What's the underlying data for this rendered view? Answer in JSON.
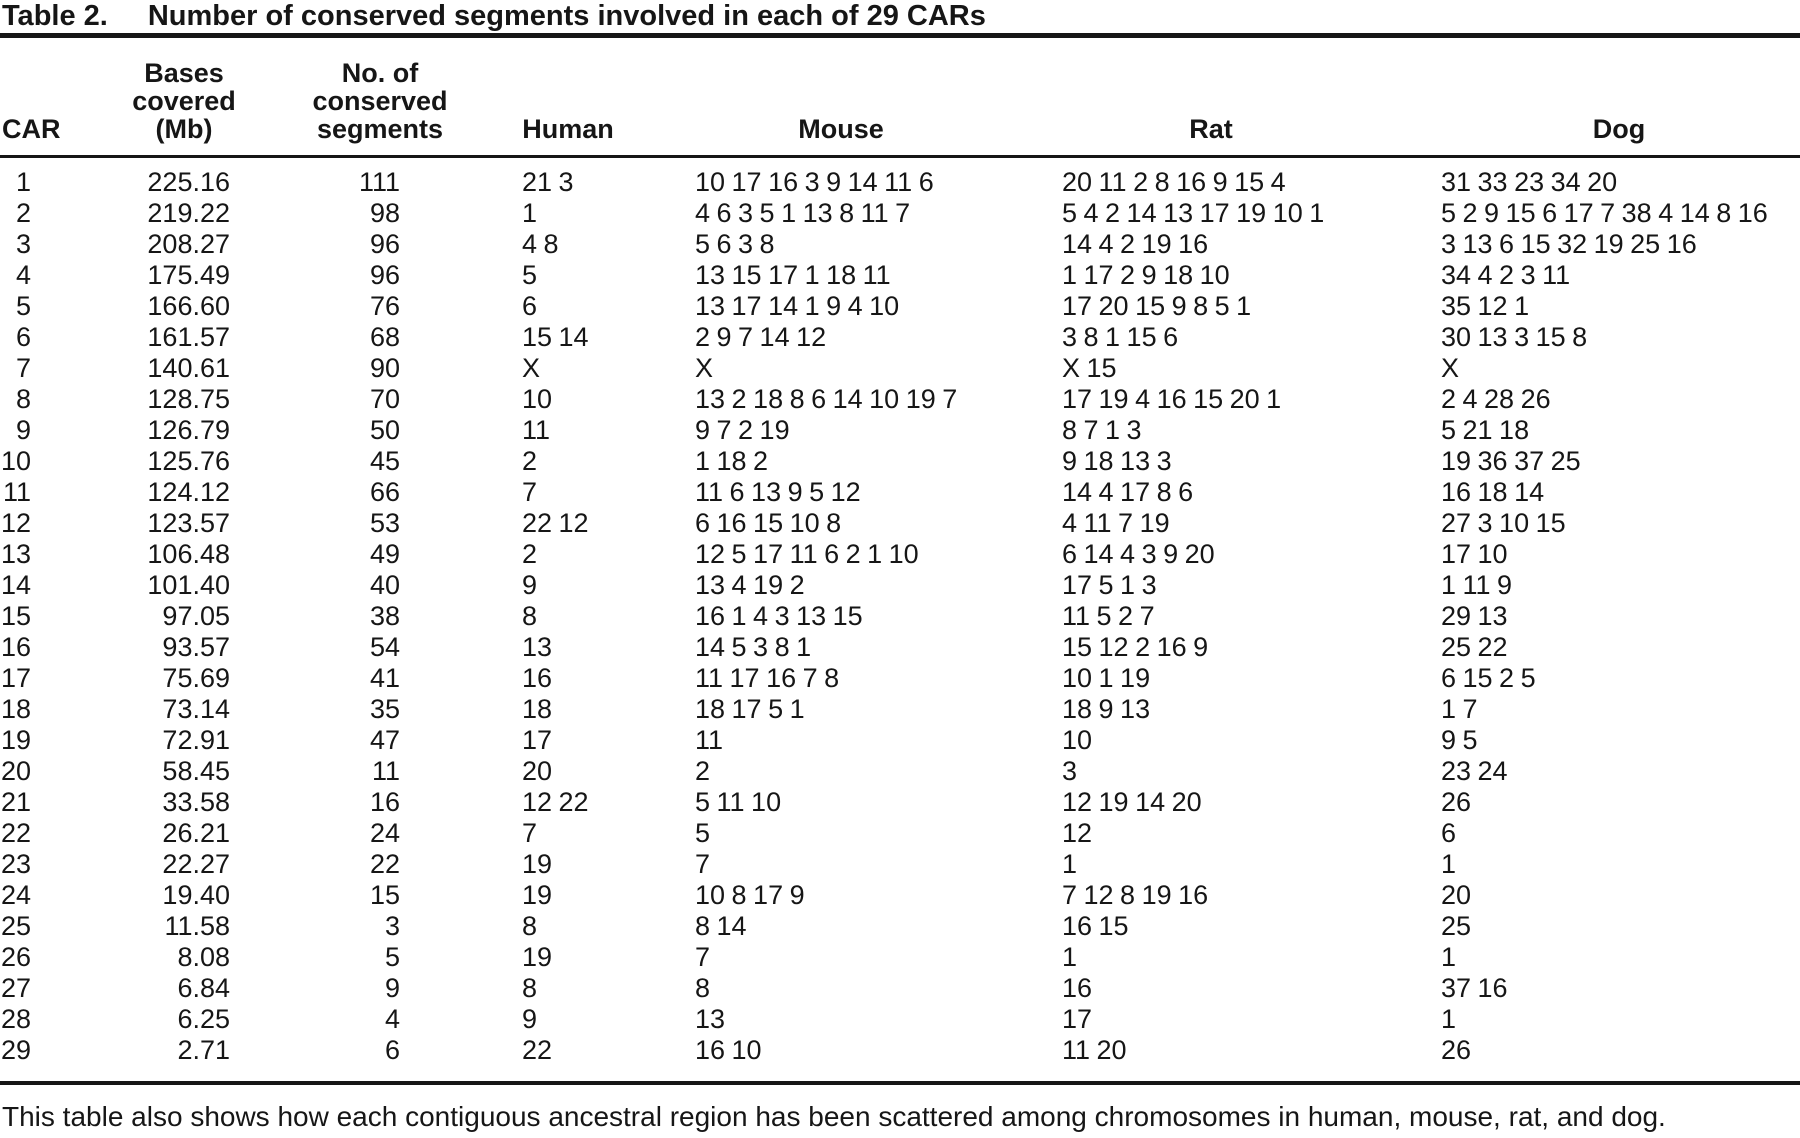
{
  "title": {
    "label": "Table 2.",
    "text": "Number of conserved segments involved in each of 29 CARs"
  },
  "table": {
    "headers": {
      "car": "CAR",
      "bases": [
        "Bases",
        "covered",
        "(Mb)"
      ],
      "segments": [
        "No. of",
        "conserved",
        "segments"
      ],
      "human": "Human",
      "mouse": "Mouse",
      "rat": "Rat",
      "dog": "Dog"
    },
    "rows": [
      {
        "car": "1",
        "bases": "225.16",
        "segments": "111",
        "human": "21 3",
        "mouse": "10 17 16 3 9 14 11 6",
        "rat": "20 11 2 8 16 9 15 4",
        "dog": "31 33 23 34 20"
      },
      {
        "car": "2",
        "bases": "219.22",
        "segments": "98",
        "human": "1",
        "mouse": "4 6 3 5 1 13 8 11 7",
        "rat": "5 4 2 14 13 17 19 10 1",
        "dog": "5 2 9 15 6 17 7 38 4 14 8 16"
      },
      {
        "car": "3",
        "bases": "208.27",
        "segments": "96",
        "human": "4 8",
        "mouse": "5 6 3 8",
        "rat": "14 4 2 19 16",
        "dog": "3 13 6 15 32 19 25 16"
      },
      {
        "car": "4",
        "bases": "175.49",
        "segments": "96",
        "human": "5",
        "mouse": "13 15 17 1 18 11",
        "rat": "1 17 2 9 18 10",
        "dog": "34 4 2 3 11"
      },
      {
        "car": "5",
        "bases": "166.60",
        "segments": "76",
        "human": "6",
        "mouse": "13 17 14 1 9 4 10",
        "rat": "17 20 15 9 8 5 1",
        "dog": "35 12 1"
      },
      {
        "car": "6",
        "bases": "161.57",
        "segments": "68",
        "human": "15 14",
        "mouse": "2 9 7 14 12",
        "rat": "3 8 1 15 6",
        "dog": "30 13 3 15 8"
      },
      {
        "car": "7",
        "bases": "140.61",
        "segments": "90",
        "human": "X",
        "mouse": "X",
        "rat": "X 15",
        "dog": "X"
      },
      {
        "car": "8",
        "bases": "128.75",
        "segments": "70",
        "human": "10",
        "mouse": "13 2 18 8 6 14 10 19 7",
        "rat": "17 19 4 16 15 20 1",
        "dog": "2 4 28 26"
      },
      {
        "car": "9",
        "bases": "126.79",
        "segments": "50",
        "human": "11",
        "mouse": "9 7 2 19",
        "rat": "8 7 1 3",
        "dog": "5 21 18"
      },
      {
        "car": "10",
        "bases": "125.76",
        "segments": "45",
        "human": "2",
        "mouse": "1 18 2",
        "rat": "9 18 13 3",
        "dog": "19 36 37 25"
      },
      {
        "car": "11",
        "bases": "124.12",
        "segments": "66",
        "human": "7",
        "mouse": "11 6 13 9 5 12",
        "rat": "14 4 17 8 6",
        "dog": "16 18 14"
      },
      {
        "car": "12",
        "bases": "123.57",
        "segments": "53",
        "human": "22 12",
        "mouse": "6 16 15 10 8",
        "rat": "4 11 7 19",
        "dog": "27 3 10 15"
      },
      {
        "car": "13",
        "bases": "106.48",
        "segments": "49",
        "human": "2",
        "mouse": "12 5 17 11 6 2 1 10",
        "rat": "6 14 4 3 9 20",
        "dog": "17 10"
      },
      {
        "car": "14",
        "bases": "101.40",
        "segments": "40",
        "human": "9",
        "mouse": "13 4 19 2",
        "rat": "17 5 1 3",
        "dog": "1 11 9"
      },
      {
        "car": "15",
        "bases": "97.05",
        "segments": "38",
        "human": "8",
        "mouse": "16 1 4 3 13 15",
        "rat": "11 5 2 7",
        "dog": "29 13"
      },
      {
        "car": "16",
        "bases": "93.57",
        "segments": "54",
        "human": "13",
        "mouse": "14 5 3 8 1",
        "rat": "15 12 2 16 9",
        "dog": "25 22"
      },
      {
        "car": "17",
        "bases": "75.69",
        "segments": "41",
        "human": "16",
        "mouse": "11 17 16 7 8",
        "rat": "10 1 19",
        "dog": "6 15 2 5"
      },
      {
        "car": "18",
        "bases": "73.14",
        "segments": "35",
        "human": "18",
        "mouse": "18 17 5 1",
        "rat": "18 9 13",
        "dog": "1 7"
      },
      {
        "car": "19",
        "bases": "72.91",
        "segments": "47",
        "human": "17",
        "mouse": "11",
        "rat": "10",
        "dog": "9 5"
      },
      {
        "car": "20",
        "bases": "58.45",
        "segments": "11",
        "human": "20",
        "mouse": "2",
        "rat": "3",
        "dog": "23 24"
      },
      {
        "car": "21",
        "bases": "33.58",
        "segments": "16",
        "human": "12 22",
        "mouse": "5 11 10",
        "rat": "12 19 14 20",
        "dog": "26"
      },
      {
        "car": "22",
        "bases": "26.21",
        "segments": "24",
        "human": "7",
        "mouse": "5",
        "rat": "12",
        "dog": "6"
      },
      {
        "car": "23",
        "bases": "22.27",
        "segments": "22",
        "human": "19",
        "mouse": "7",
        "rat": "1",
        "dog": "1"
      },
      {
        "car": "24",
        "bases": "19.40",
        "segments": "15",
        "human": "19",
        "mouse": "10 8 17 9",
        "rat": "7 12 8 19 16",
        "dog": "20"
      },
      {
        "car": "25",
        "bases": "11.58",
        "segments": "3",
        "human": "8",
        "mouse": "8 14",
        "rat": "16 15",
        "dog": "25"
      },
      {
        "car": "26",
        "bases": "8.08",
        "segments": "5",
        "human": "19",
        "mouse": "7",
        "rat": "1",
        "dog": "1"
      },
      {
        "car": "27",
        "bases": "6.84",
        "segments": "9",
        "human": "8",
        "mouse": "8",
        "rat": "16",
        "dog": "37 16"
      },
      {
        "car": "28",
        "bases": "6.25",
        "segments": "4",
        "human": "9",
        "mouse": "13",
        "rat": "17",
        "dog": "1"
      },
      {
        "car": "29",
        "bases": "2.71",
        "segments": "6",
        "human": "22",
        "mouse": "16 10",
        "rat": "11 20",
        "dog": "26"
      }
    ]
  },
  "footnote": "This table also shows how each contiguous ancestral region has been scattered among chromosomes in human, mouse, rat, and dog.",
  "colors": {
    "background": "#ffffff",
    "text": "#161616",
    "rule": "#161616"
  }
}
